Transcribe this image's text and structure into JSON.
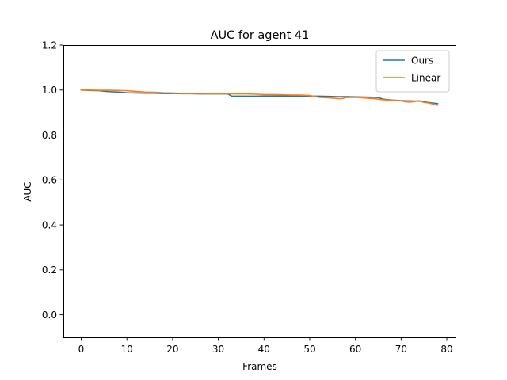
{
  "chart_data": {
    "type": "line",
    "title": "AUC for agent 41",
    "xlabel": "Frames",
    "ylabel": "AUC",
    "xlim": [
      -3.9,
      81.9
    ],
    "ylim": [
      -0.1,
      1.2
    ],
    "xticks": [
      0,
      10,
      20,
      30,
      40,
      50,
      60,
      70,
      80
    ],
    "yticks": [
      0.0,
      0.2,
      0.4,
      0.6,
      0.8,
      1.0,
      1.2
    ],
    "xtick_labels": [
      "0",
      "10",
      "20",
      "30",
      "40",
      "50",
      "60",
      "70",
      "80"
    ],
    "ytick_labels": [
      "0.0",
      "0.2",
      "0.4",
      "0.6",
      "0.8",
      "1.0",
      "1.2"
    ],
    "legend_position": "top-right",
    "grid": false,
    "series": [
      {
        "name": "Ours",
        "color": "#1f77b4",
        "x": [
          0,
          2,
          4,
          6,
          8,
          10,
          12,
          14,
          16,
          18,
          20,
          22,
          24,
          26,
          28,
          30,
          32,
          33,
          34,
          36,
          38,
          40,
          42,
          44,
          46,
          48,
          50,
          52,
          54,
          56,
          58,
          60,
          62,
          64,
          65,
          66,
          68,
          70,
          72,
          74,
          76,
          78
        ],
        "y": [
          1.0,
          0.998,
          0.997,
          0.993,
          0.991,
          0.988,
          0.987,
          0.986,
          0.986,
          0.985,
          0.985,
          0.984,
          0.984,
          0.983,
          0.983,
          0.983,
          0.983,
          0.973,
          0.973,
          0.973,
          0.973,
          0.974,
          0.974,
          0.974,
          0.974,
          0.973,
          0.973,
          0.973,
          0.972,
          0.971,
          0.971,
          0.97,
          0.969,
          0.968,
          0.967,
          0.96,
          0.956,
          0.953,
          0.952,
          0.951,
          0.945,
          0.94
        ]
      },
      {
        "name": "Linear",
        "color": "#ff7f0e",
        "x": [
          0,
          2,
          4,
          6,
          8,
          10,
          12,
          14,
          16,
          18,
          20,
          22,
          24,
          26,
          28,
          30,
          32,
          34,
          36,
          38,
          40,
          42,
          44,
          46,
          48,
          50,
          52,
          54,
          56,
          57,
          58,
          60,
          62,
          64,
          66,
          68,
          70,
          71,
          72,
          73,
          74,
          75,
          76,
          78
        ],
        "y": [
          1.0,
          1.0,
          0.999,
          0.999,
          0.998,
          0.997,
          0.994,
          0.991,
          0.99,
          0.988,
          0.987,
          0.985,
          0.985,
          0.985,
          0.984,
          0.984,
          0.984,
          0.983,
          0.983,
          0.982,
          0.98,
          0.98,
          0.979,
          0.978,
          0.978,
          0.976,
          0.968,
          0.966,
          0.963,
          0.962,
          0.967,
          0.968,
          0.965,
          0.962,
          0.957,
          0.955,
          0.952,
          0.948,
          0.947,
          0.949,
          0.953,
          0.945,
          0.943,
          0.933
        ]
      }
    ]
  }
}
